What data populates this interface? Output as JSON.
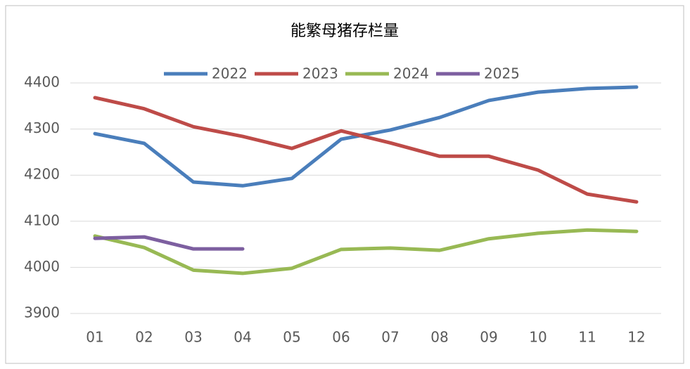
{
  "chart_data": {
    "type": "line",
    "title": "能繁母猪存栏量",
    "categories": [
      "01",
      "02",
      "03",
      "04",
      "05",
      "06",
      "07",
      "08",
      "09",
      "10",
      "11",
      "12"
    ],
    "series": [
      {
        "name": "2022",
        "color": "#4a7ebb",
        "values": [
          4290,
          4269,
          4185,
          4177,
          4193,
          4278,
          4298,
          4325,
          4362,
          4380,
          4388,
          4391
        ]
      },
      {
        "name": "2023",
        "color": "#be4b48",
        "values": [
          4368,
          4344,
          4305,
          4284,
          4258,
          4296,
          4270,
          4241,
          4241,
          4211,
          4159,
          4142
        ]
      },
      {
        "name": "2024",
        "color": "#98b954",
        "values": [
          4068,
          4043,
          3994,
          3987,
          3998,
          4039,
          4042,
          4037,
          4062,
          4074,
          4081,
          4078
        ]
      },
      {
        "name": "2025",
        "color": "#7d5fa0",
        "values": [
          4063,
          4066,
          4040,
          4040,
          null,
          null,
          null,
          null,
          null,
          null,
          null,
          null
        ]
      }
    ],
    "ylim": [
      3900,
      4400
    ],
    "yticks": [
      3900,
      4000,
      4100,
      4200,
      4300,
      4400
    ],
    "grid": true,
    "legend": "top"
  }
}
